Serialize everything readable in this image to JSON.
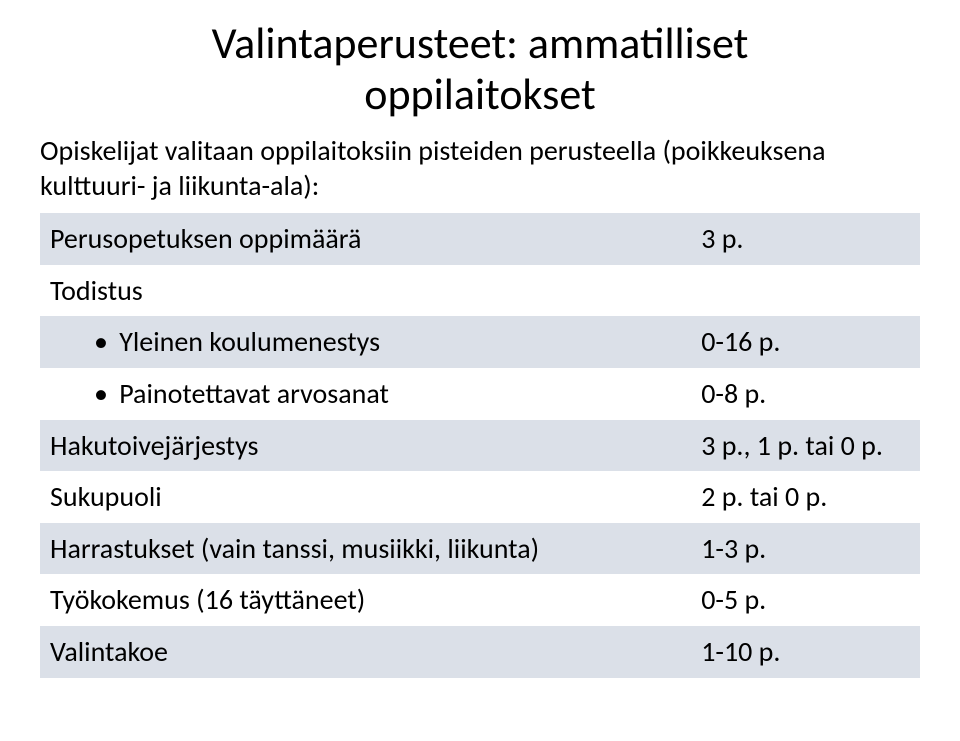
{
  "title_line1": "Valintaperusteet: ammatilliset",
  "title_line2": "oppilaitokset",
  "lead_text": "Opiskelijat valitaan oppilaitoksiin pisteiden perusteella (poikkeuksena kulttuuri- ja liikunta-ala):",
  "table": {
    "band_color": "#dbe0e8",
    "text_color": "#000000",
    "fontsize": 28,
    "rows": [
      {
        "label": "Perusopetuksen oppimäärä",
        "value": "3 p.",
        "band": true,
        "indent": false
      },
      {
        "label": "Todistus",
        "value": "",
        "band": false,
        "indent": false
      },
      {
        "label": "Yleinen koulumenestys",
        "value": "0-16 p.",
        "band": true,
        "indent": true,
        "bullet": "•"
      },
      {
        "label": "Painotettavat arvosanat",
        "value": "0-8 p.",
        "band": false,
        "indent": true,
        "bullet": "•"
      },
      {
        "label": "Hakutoivejärjestys",
        "value": "3 p., 1 p. tai 0 p.",
        "band": true,
        "indent": false
      },
      {
        "label": "Sukupuoli",
        "value": "2 p. tai 0 p.",
        "band": false,
        "indent": false
      },
      {
        "label": "Harrastukset (vain tanssi, musiikki, liikunta)",
        "value": "1-3 p.",
        "band": true,
        "indent": false
      },
      {
        "label": "Työkokemus (16 täyttäneet)",
        "value": "0-5 p.",
        "band": false,
        "indent": false
      },
      {
        "label": "Valintakoe",
        "value": "1-10 p.",
        "band": true,
        "indent": false
      }
    ]
  }
}
